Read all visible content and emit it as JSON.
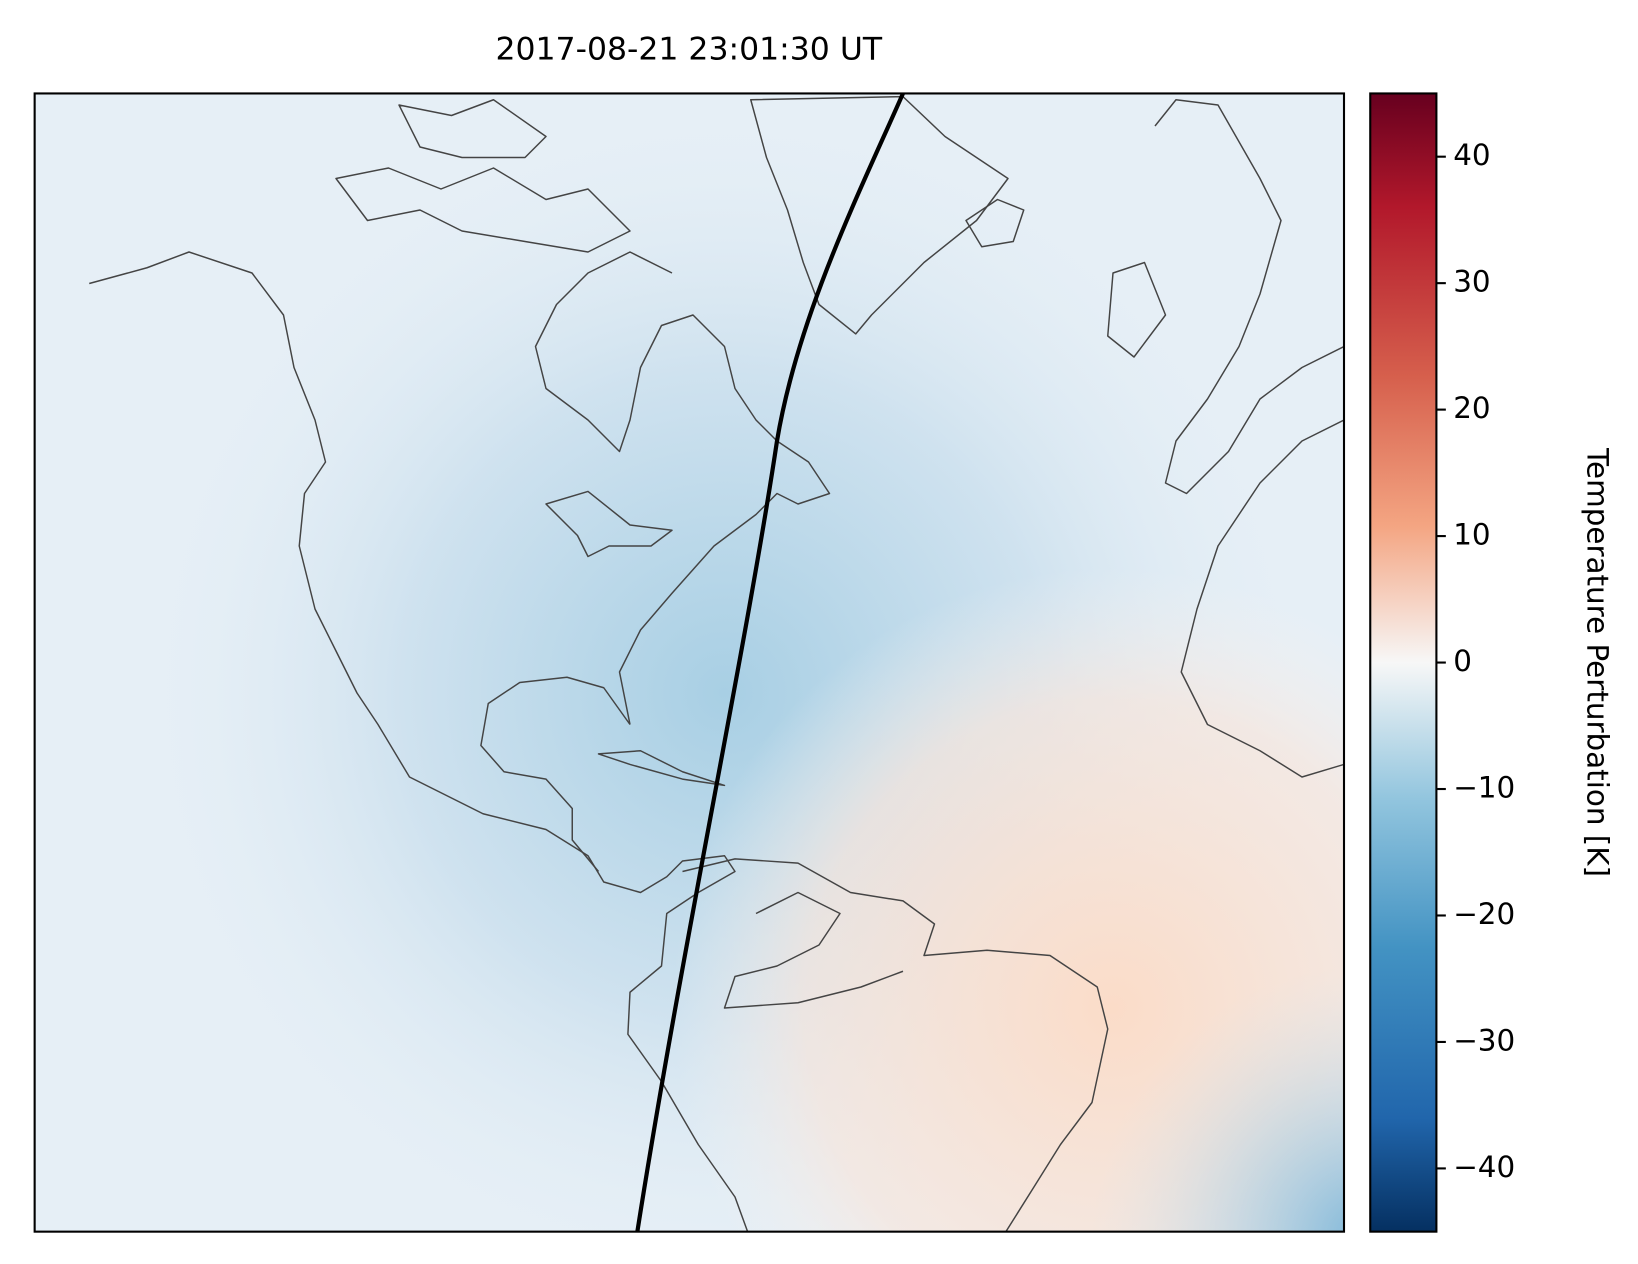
{
  "chart_data": {
    "type": "map",
    "title": "2017-08-21 23:01:30 UT",
    "colorbar": {
      "label": "Temperature Perturbation [K]",
      "colormap": "RdBu_r",
      "lim": [
        -45,
        45
      ],
      "ticks": [
        {
          "value": -40,
          "label": "−40"
        },
        {
          "value": -30,
          "label": "−30"
        },
        {
          "value": -20,
          "label": "−20"
        },
        {
          "value": -10,
          "label": "−10"
        },
        0,
        10,
        20,
        30,
        40
      ]
    }
  }
}
